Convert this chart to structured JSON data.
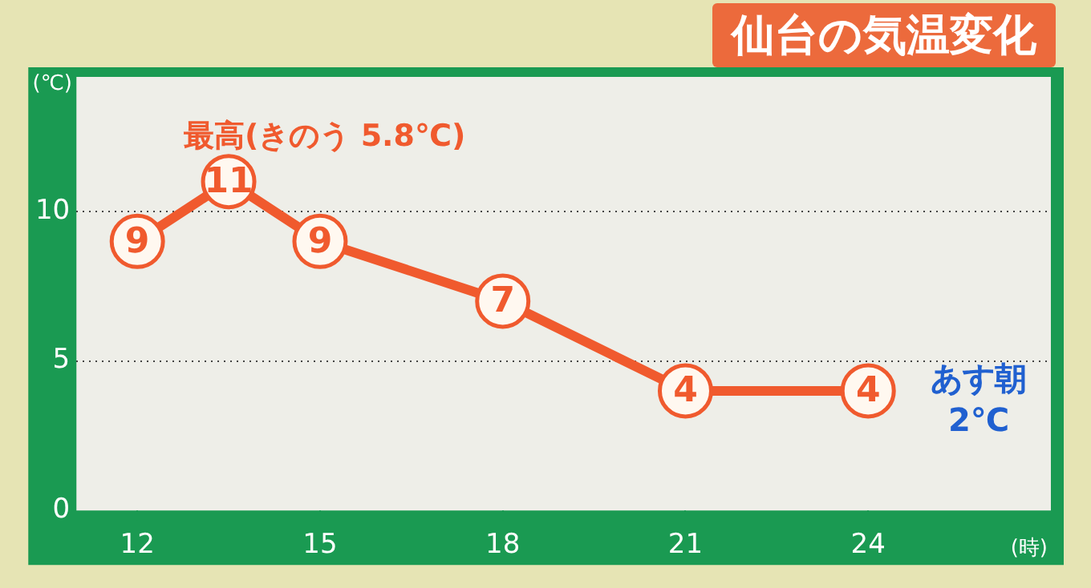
{
  "chart_data": {
    "type": "line",
    "title": "仙台の気温変化",
    "xlabel": "(時)",
    "ylabel": "(℃)",
    "x": [
      12,
      13.5,
      15,
      18,
      21,
      24
    ],
    "series": [
      {
        "color": "#f05a2e",
        "values": [
          9,
          11,
          9,
          7,
          4,
          4
        ]
      }
    ],
    "xlim": [
      11,
      27
    ],
    "xticks": [
      12,
      15,
      18,
      21,
      24
    ],
    "ylim": [
      0,
      14.5
    ],
    "yticks": [
      0,
      5,
      10
    ],
    "grid": "y",
    "marker": "circle",
    "line_style": "solid",
    "data_labels": true,
    "legend": false,
    "annotations": [
      {
        "text": "最高(きのう 5.8℃)",
        "x": 13.5,
        "y": 11
      },
      "あす朝 2℃"
    ]
  }
}
